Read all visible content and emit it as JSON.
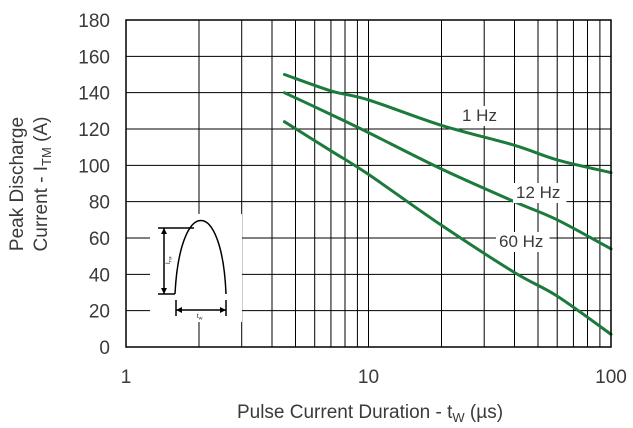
{
  "chart_data": {
    "type": "line",
    "xscale": "log",
    "xlim": [
      1,
      100
    ],
    "ylim": [
      0,
      180
    ],
    "y_ticks": [
      0,
      20,
      40,
      60,
      80,
      100,
      120,
      140,
      160,
      180
    ],
    "x_major_ticks": [
      1,
      10,
      100
    ],
    "x_major_tick_labels": [
      "1",
      "10",
      "100"
    ],
    "grid": true,
    "xlabel": {
      "main": "Pulse Current Duration - t",
      "sub": "W",
      "unit": " (µs)"
    },
    "ylabel": {
      "line1": "Peak Discharge",
      "line2_main": "Current - I",
      "line2_sub": "TM",
      "line2_unit": " (A)"
    },
    "series": [
      {
        "name": "1 Hz",
        "color": "#1b7a3c",
        "x": [
          4.5,
          7,
          10,
          20,
          40,
          60,
          100
        ],
        "y": [
          150,
          141,
          136,
          122,
          111,
          103,
          96
        ]
      },
      {
        "name": "12 Hz",
        "color": "#1b7a3c",
        "x": [
          4.5,
          7,
          10,
          20,
          40,
          60,
          100
        ],
        "y": [
          140,
          128,
          118,
          98,
          80,
          70,
          54
        ]
      },
      {
        "name": "60 Hz",
        "color": "#1b7a3c",
        "x": [
          4.5,
          7,
          10,
          20,
          40,
          60,
          100
        ],
        "y": [
          124,
          108,
          95,
          67,
          41,
          28,
          7
        ]
      }
    ],
    "inset": {
      "pulse_height_label": "I",
      "pulse_height_sub": "TM",
      "pulse_width_label": "t",
      "pulse_width_sub": "W"
    }
  }
}
